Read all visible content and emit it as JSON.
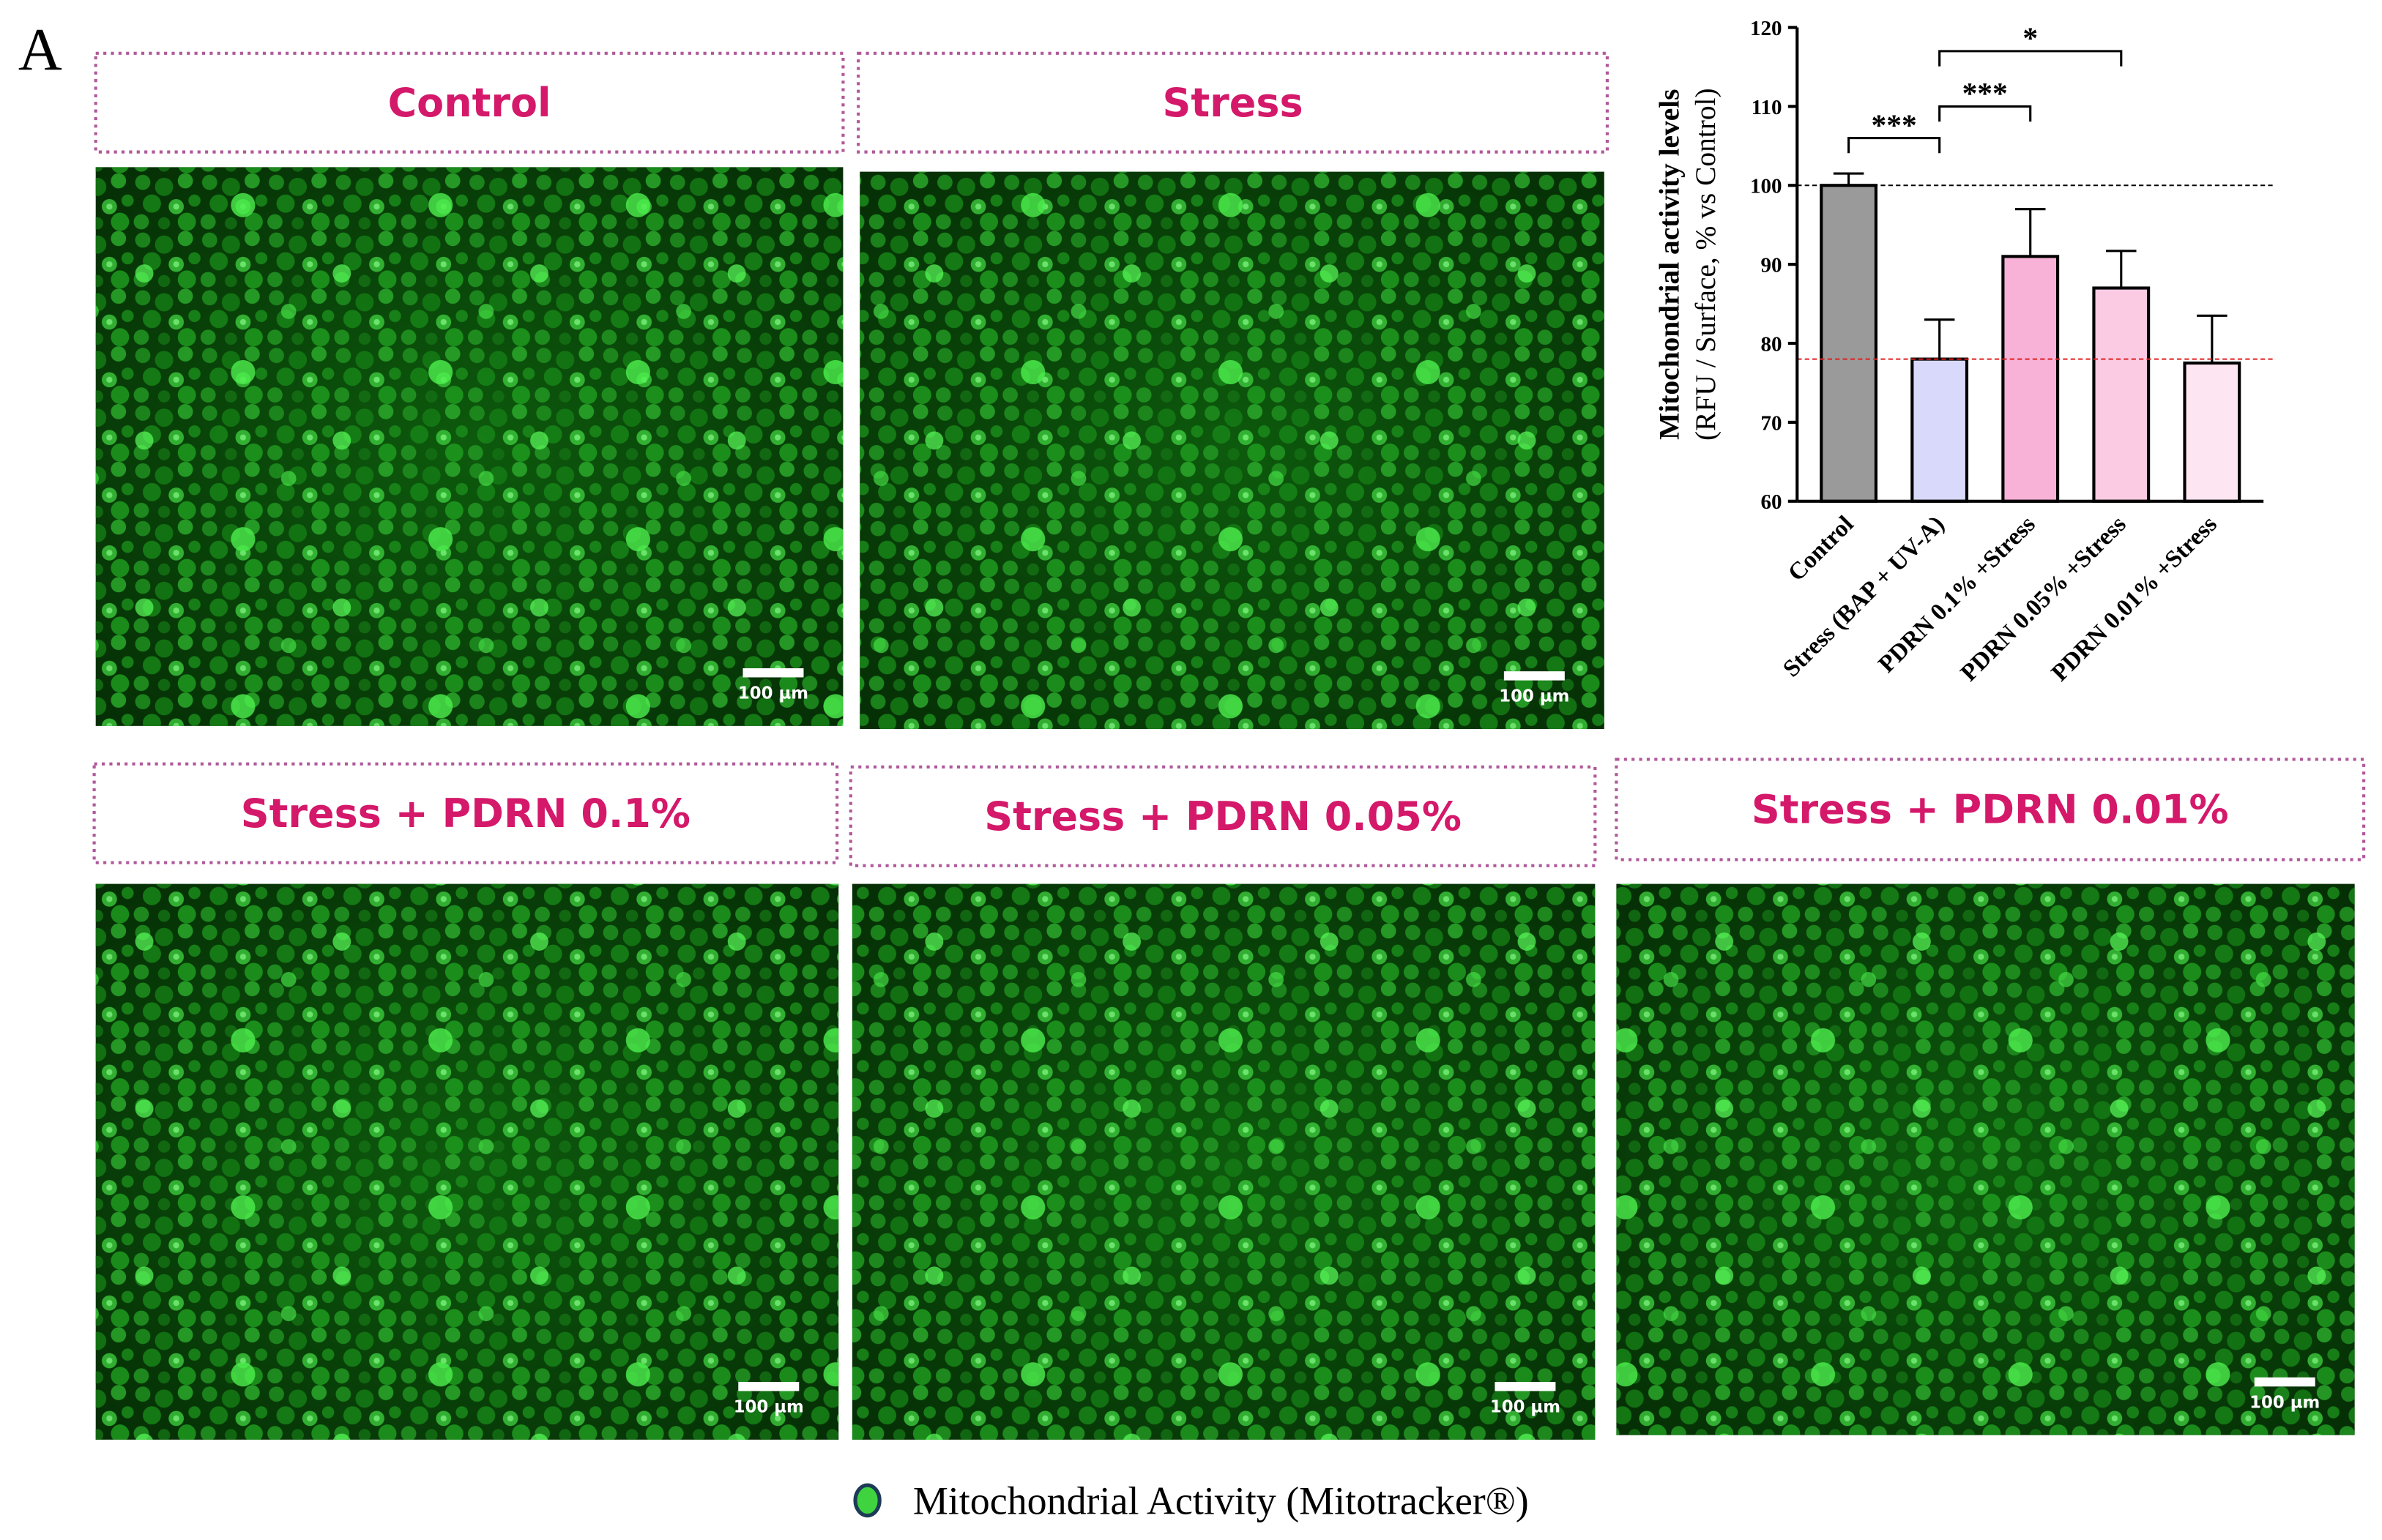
{
  "panel_label": "A",
  "panels": [
    {
      "title": "Control",
      "scale_bar": "100 µm"
    },
    {
      "title": "Stress",
      "scale_bar": "100 µm"
    },
    {
      "title": "Stress + PDRN 0.1%",
      "scale_bar": "100 µm"
    },
    {
      "title": "Stress + PDRN 0.05%",
      "scale_bar": "100 µm"
    },
    {
      "title": "Stress + PDRN 0.01%",
      "scale_bar": "100 µm"
    }
  ],
  "chart_data": {
    "type": "bar",
    "y_label": [
      "Mitochondrial activity levels",
      "(RFU / Surface, % vs Control)"
    ],
    "categories": [
      "Control",
      "Stress (BAP + UV-A)",
      "PDRN 0.1% +Stress",
      "PDRN 0.05% +Stress",
      "PDRN 0.01% +Stress"
    ],
    "values": [
      100,
      78,
      91,
      87,
      77.5
    ],
    "errors": [
      1.5,
      5,
      6,
      4.7,
      6
    ],
    "colors": [
      "#9a9a9a",
      "#d9d9fb",
      "#f8b2d8",
      "#fbcbe4",
      "#fde6f1"
    ],
    "ylim": [
      60,
      120
    ],
    "yticks": [
      60,
      70,
      80,
      90,
      100,
      110,
      120
    ],
    "reference_lines": [
      {
        "value": 100,
        "color": "#000000"
      },
      {
        "value": 78,
        "color": "#e02020"
      }
    ],
    "significance": [
      {
        "from": 0,
        "to": 1,
        "y": 106,
        "label": "***"
      },
      {
        "from": 1,
        "to": 2,
        "y": 110,
        "label": "***"
      },
      {
        "from": 1,
        "to": 3,
        "y": 117,
        "label": "*"
      }
    ]
  },
  "legend": "Mitochondrial Activity (Mitotracker®)"
}
